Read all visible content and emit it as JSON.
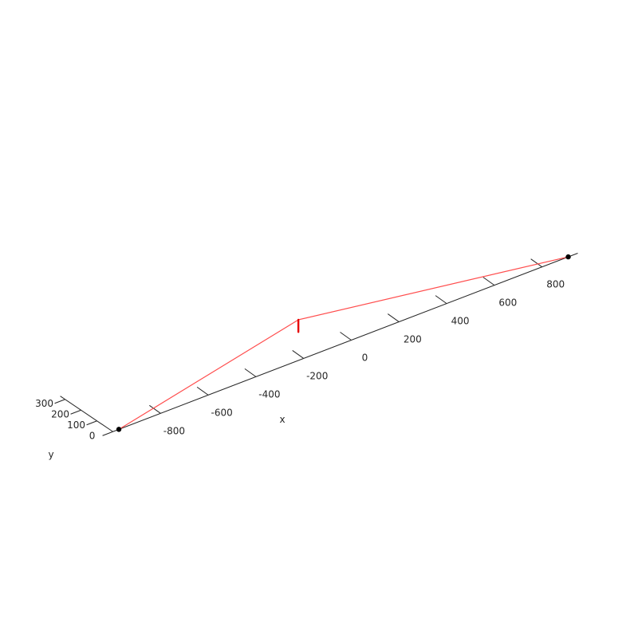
{
  "chart_data": {
    "type": "line",
    "title": "",
    "xlabel": "x",
    "ylabel": "y",
    "x_ticks": [
      -800,
      -600,
      -400,
      -200,
      0,
      200,
      400,
      600,
      800
    ],
    "x_tick_labels": [
      "-800",
      "-600",
      "-400",
      "-200",
      "0",
      "200",
      "400",
      "600",
      "800"
    ],
    "y_ticks": [
      0,
      100,
      200,
      300
    ],
    "y_tick_labels": [
      "0",
      "100",
      "200",
      "300"
    ],
    "xlim": [
      -1000,
      950
    ],
    "ylim": [
      0,
      330
    ],
    "grid": false,
    "series": [
      {
        "style": "line",
        "color": "#ff4d4d",
        "points": [
          {
            "x": -975,
            "y": 0,
            "z": 0
          },
          {
            "x": -222,
            "y": 0,
            "z": 300
          },
          {
            "x": 910,
            "y": 0,
            "z": 0
          }
        ]
      },
      {
        "style": "thick-line",
        "color": "#e60000",
        "points": [
          {
            "x": -222,
            "y": 0,
            "z": 300
          },
          {
            "x": -222,
            "y": 0,
            "z": 210
          }
        ]
      },
      {
        "style": "markers",
        "color": "#000000",
        "points": [
          {
            "x": -975,
            "y": 0,
            "z": 0
          },
          {
            "x": 910,
            "y": 0,
            "z": 0
          }
        ]
      }
    ]
  }
}
